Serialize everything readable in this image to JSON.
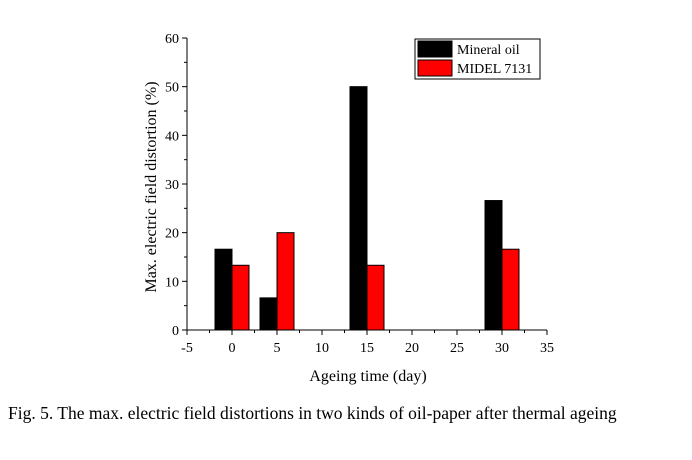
{
  "chart_data": {
    "type": "bar",
    "x": [
      0,
      5,
      15,
      30
    ],
    "series": [
      {
        "name": "Mineral oil",
        "values": [
          16.6,
          6.6,
          50,
          26.6
        ],
        "color": "#000000"
      },
      {
        "name": "MIDEL 7131",
        "values": [
          13.3,
          20,
          13.3,
          16.6
        ],
        "color": "#ff0000"
      }
    ],
    "xlabel": "Ageing time (day)",
    "ylabel": "Max. electric field distortion (%)",
    "xlim": [
      -5,
      35
    ],
    "ylim": [
      0,
      60
    ],
    "xticks": [
      "-5",
      "0",
      "5",
      "10",
      "15",
      "20",
      "25",
      "30",
      "35"
    ],
    "yticks": [
      "0",
      "10",
      "20",
      "30",
      "40",
      "50",
      "60"
    ],
    "legend_position": "top-right",
    "grid": false
  },
  "caption": "Fig. 5.  The max. electric field distortions in two kinds of oil-paper after thermal ageing"
}
